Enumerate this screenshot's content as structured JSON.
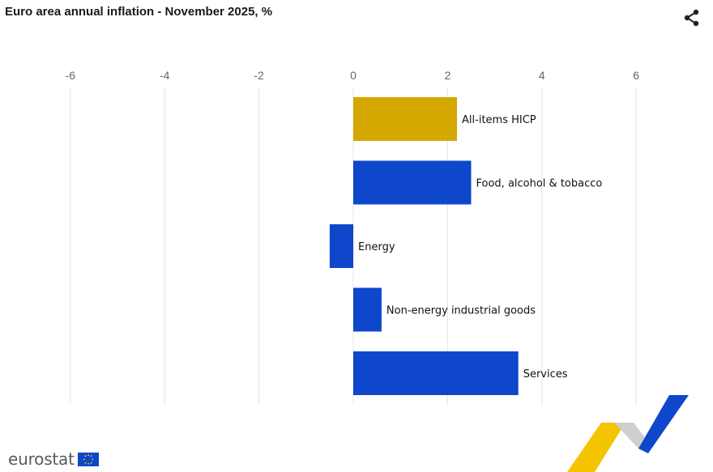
{
  "header": {
    "title": "Euro area annual inflation - November 2025, %",
    "share_icon": "share-icon"
  },
  "footer": {
    "brand_text": "eurostat",
    "flag_icon": "eu-flag-icon"
  },
  "colors": {
    "highlight": "#d4a800",
    "bar": "#0e47cb",
    "grid": "#e4e4e4",
    "tick_text": "#666666"
  },
  "chart_data": {
    "type": "bar",
    "orientation": "horizontal",
    "title": "Euro area annual inflation - November 2025, %",
    "categories": [
      "All-items HICP",
      "Food, alcohol & tobacco",
      "Energy",
      "Non-energy industrial goods",
      "Services"
    ],
    "values": [
      2.2,
      2.5,
      -0.5,
      0.6,
      3.5
    ],
    "highlighted_category": "All-items HICP",
    "xlim": [
      -6,
      7
    ],
    "xticks": [
      "-6",
      "-4",
      "-2",
      "0",
      "2",
      "4",
      "6"
    ],
    "xtick_values": [
      -6,
      -4,
      -2,
      0,
      2,
      4,
      6
    ],
    "grid": true,
    "legend": "none"
  }
}
